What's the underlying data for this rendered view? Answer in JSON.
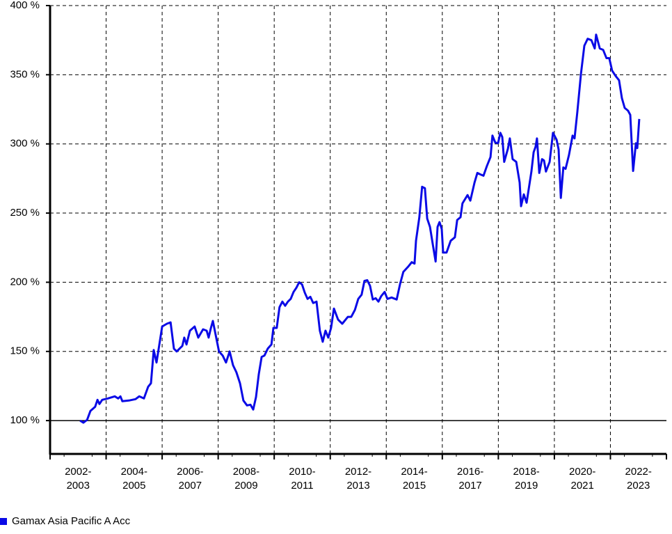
{
  "chart_data": {
    "type": "line",
    "xlim": [
      2002,
      2024
    ],
    "ylim": [
      75.9,
      400
    ],
    "yticks": [
      {
        "value": 100,
        "label": "100 %"
      },
      {
        "value": 150,
        "label": "150 %"
      },
      {
        "value": 200,
        "label": "200 %"
      },
      {
        "value": 250,
        "label": "250 %"
      },
      {
        "value": 300,
        "label": "300 %"
      },
      {
        "value": 350,
        "label": "350 %"
      },
      {
        "value": 400,
        "label": "400 %"
      }
    ],
    "grid": true,
    "baseline": 100,
    "categories": [
      [
        "2002-",
        "2003"
      ],
      [
        "2004-",
        "2005"
      ],
      [
        "2006-",
        "2007"
      ],
      [
        "2008-",
        "2009"
      ],
      [
        "2010-",
        "2011"
      ],
      [
        "2012-",
        "2013"
      ],
      [
        "2014-",
        "2015"
      ],
      [
        "2016-",
        "2017"
      ],
      [
        "2018-",
        "2019"
      ],
      [
        "2020-",
        "2021"
      ],
      [
        "2022-",
        "2023"
      ]
    ],
    "legend": "bottom-left",
    "x": [
      2003.07,
      2003.19,
      2003.32,
      2003.44,
      2003.61,
      2003.69,
      2003.76,
      2003.86,
      2004.06,
      2004.31,
      2004.43,
      2004.51,
      2004.58,
      2004.81,
      2005.05,
      2005.18,
      2005.35,
      2005.5,
      2005.6,
      2005.7,
      2005.8,
      2006.0,
      2006.17,
      2006.3,
      2006.42,
      2006.52,
      2006.72,
      2006.79,
      2006.87,
      2006.99,
      2007.16,
      2007.29,
      2007.46,
      2007.59,
      2007.66,
      2007.74,
      2007.81,
      2007.91,
      2008.03,
      2008.16,
      2008.28,
      2008.41,
      2008.53,
      2008.65,
      2008.78,
      2008.9,
      2009.03,
      2009.15,
      2009.25,
      2009.35,
      2009.45,
      2009.55,
      2009.65,
      2009.77,
      2009.9,
      2009.97,
      2010.09,
      2010.19,
      2010.29,
      2010.39,
      2010.49,
      2010.59,
      2010.69,
      2010.79,
      2010.89,
      2010.99,
      2011.09,
      2011.19,
      2011.29,
      2011.39,
      2011.51,
      2011.63,
      2011.73,
      2011.83,
      2011.93,
      2012.03,
      2012.13,
      2012.28,
      2012.43,
      2012.63,
      2012.75,
      2012.88,
      2013.0,
      2013.12,
      2013.22,
      2013.32,
      2013.42,
      2013.52,
      2013.62,
      2013.72,
      2013.82,
      2013.94,
      2014.04,
      2014.19,
      2014.37,
      2014.49,
      2014.61,
      2014.79,
      2014.91,
      2015.01,
      2015.06,
      2015.18,
      2015.28,
      2015.38,
      2015.46,
      2015.56,
      2015.66,
      2015.76,
      2015.83,
      2015.9,
      2015.98,
      2016.03,
      2016.15,
      2016.3,
      2016.45,
      2016.53,
      2016.65,
      2016.72,
      2016.9,
      2017.0,
      2017.15,
      2017.25,
      2017.35,
      2017.47,
      2017.59,
      2017.72,
      2017.79,
      2017.89,
      2017.99,
      2018.07,
      2018.14,
      2018.21,
      2018.34,
      2018.41,
      2018.51,
      2018.64,
      2018.76,
      2018.81,
      2018.91,
      2019.01,
      2019.18,
      2019.26,
      2019.33,
      2019.38,
      2019.46,
      2019.56,
      2019.63,
      2019.7,
      2019.83,
      2019.95,
      2020.08,
      2020.15,
      2020.23,
      2020.32,
      2020.4,
      2020.52,
      2020.65,
      2020.72,
      2020.82,
      2020.95,
      2021.07,
      2021.19,
      2021.32,
      2021.44,
      2021.49,
      2021.62,
      2021.74,
      2021.86,
      2021.96,
      2022.06,
      2022.19,
      2022.31,
      2022.41,
      2022.51,
      2022.63,
      2022.71,
      2022.81,
      2022.91,
      2022.96,
      2023.03
    ],
    "series": [
      {
        "name": "Gamax Asia Pacific A Acc",
        "color": "#0a0ae6",
        "values": [
          100,
          98.5,
          100.5,
          107,
          110,
          115,
          112,
          115,
          116,
          117.5,
          116,
          117.5,
          114,
          114.5,
          115.5,
          117.5,
          116,
          124.5,
          127,
          151,
          142,
          168,
          170,
          171,
          152,
          150,
          154,
          160,
          155,
          165,
          168,
          160,
          166,
          165,
          160,
          167,
          172,
          162,
          150,
          147,
          142,
          150,
          140,
          135,
          127,
          114.5,
          111,
          111.5,
          108,
          117,
          133.5,
          146,
          147,
          152,
          155,
          167,
          167,
          182,
          186,
          183,
          186,
          188,
          193,
          196,
          200,
          198.5,
          192.5,
          188,
          189.5,
          185,
          186,
          165,
          157,
          165,
          160,
          167,
          181,
          173,
          170,
          175,
          175,
          180,
          188,
          191,
          201,
          201.5,
          197.5,
          187.5,
          188.5,
          186,
          190,
          193,
          188,
          189,
          187.5,
          198.5,
          207.5,
          211.5,
          214.5,
          213.5,
          230,
          247,
          269,
          268,
          246,
          240,
          227.5,
          215,
          240,
          243.5,
          238.5,
          221.5,
          221.5,
          230,
          232.5,
          245,
          247,
          257,
          263,
          259,
          272,
          279,
          278,
          277,
          284,
          290.5,
          306,
          301,
          300.5,
          308,
          305,
          287,
          296.5,
          304,
          289,
          287,
          272,
          255,
          263.5,
          257.5,
          280,
          294,
          298,
          304,
          279,
          289,
          288,
          280,
          287,
          308,
          303,
          296,
          261,
          283,
          282,
          292,
          306,
          304,
          323,
          351,
          371,
          376,
          375,
          369,
          379,
          369,
          368,
          362,
          362,
          353,
          349,
          346,
          333,
          326,
          324,
          321,
          280.5,
          300.5,
          297,
          318
        ]
      }
    ]
  }
}
